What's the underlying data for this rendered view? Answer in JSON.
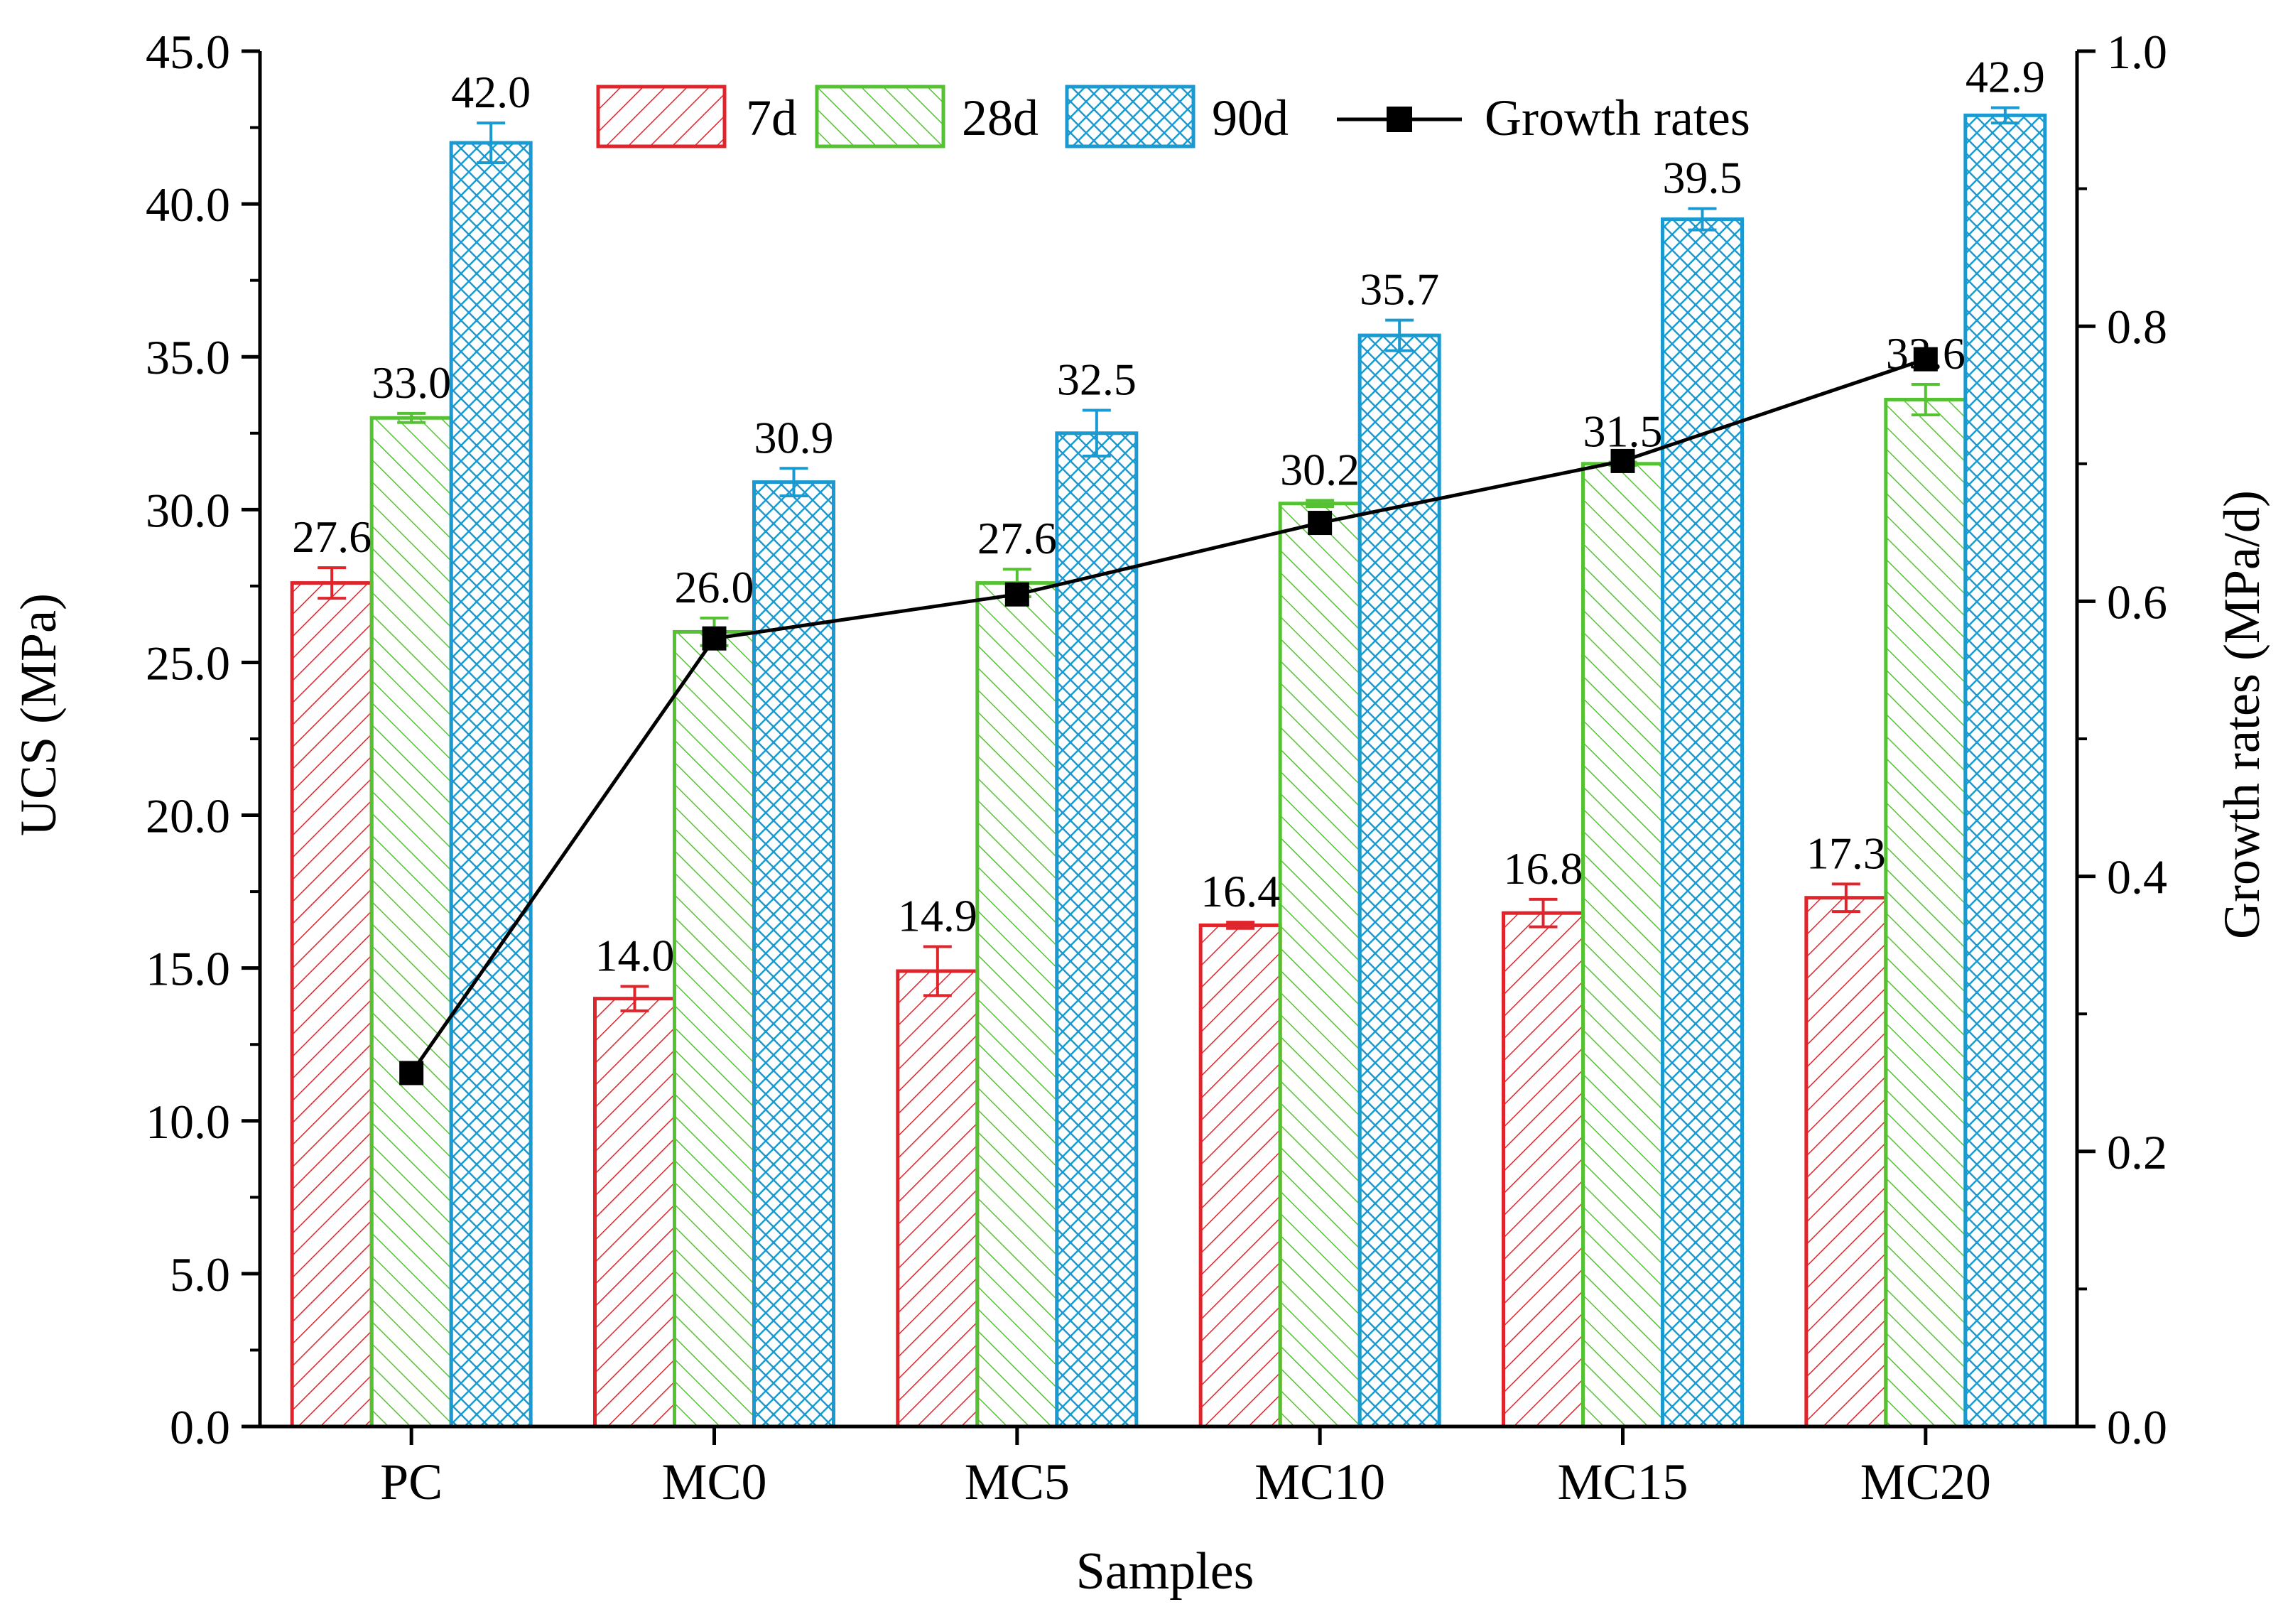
{
  "chart_data": {
    "type": "bar",
    "title": "",
    "xlabel": "Samples",
    "ylabel": "UCS (MPa)",
    "y2label": "Growth rates (MPa/d)",
    "ylim": [
      0,
      45
    ],
    "y2lim": [
      0,
      1.0
    ],
    "yticks": [
      "0.0",
      "5.0",
      "10.0",
      "15.0",
      "20.0",
      "25.0",
      "30.0",
      "35.0",
      "40.0",
      "45.0"
    ],
    "y2ticks": [
      "0.0",
      "0.2",
      "0.4",
      "0.6",
      "0.8",
      "1.0"
    ],
    "categories": [
      "PC",
      "MC0",
      "MC5",
      "MC10",
      "MC15",
      "MC20"
    ],
    "series": [
      {
        "name": "7d",
        "color": "#e0242c",
        "values": [
          27.6,
          14.0,
          14.9,
          16.4,
          16.8,
          17.3
        ],
        "labels": [
          "27.6",
          "14.0",
          "14.9",
          "16.4",
          "16.8",
          "17.3"
        ],
        "errors": [
          0.5,
          0.4,
          0.8,
          0.1,
          0.45,
          0.45
        ]
      },
      {
        "name": "28d",
        "color": "#55c234",
        "values": [
          33.0,
          26.0,
          27.6,
          30.2,
          31.5,
          33.6
        ],
        "labels": [
          "33.0",
          "26.0",
          "27.6",
          "30.2",
          "31.5",
          "33.6"
        ],
        "errors": [
          0.15,
          0.45,
          0.45,
          0.1,
          0.05,
          0.5
        ]
      },
      {
        "name": "90d",
        "color": "#1a9ad0",
        "values": [
          42.0,
          30.9,
          32.5,
          35.7,
          39.5,
          42.9
        ],
        "labels": [
          "42.0",
          "30.9",
          "32.5",
          "35.7",
          "39.5",
          "42.9"
        ],
        "errors": [
          0.65,
          0.45,
          0.75,
          0.5,
          0.35,
          0.25
        ]
      }
    ],
    "line_series": {
      "name": "Growth rates",
      "color": "#000000",
      "values": [
        0.257,
        0.573,
        0.605,
        0.657,
        0.702,
        0.776
      ]
    },
    "legend": {
      "items": [
        "7d",
        "28d",
        "90d",
        "Growth rates"
      ],
      "placement": "top"
    }
  }
}
